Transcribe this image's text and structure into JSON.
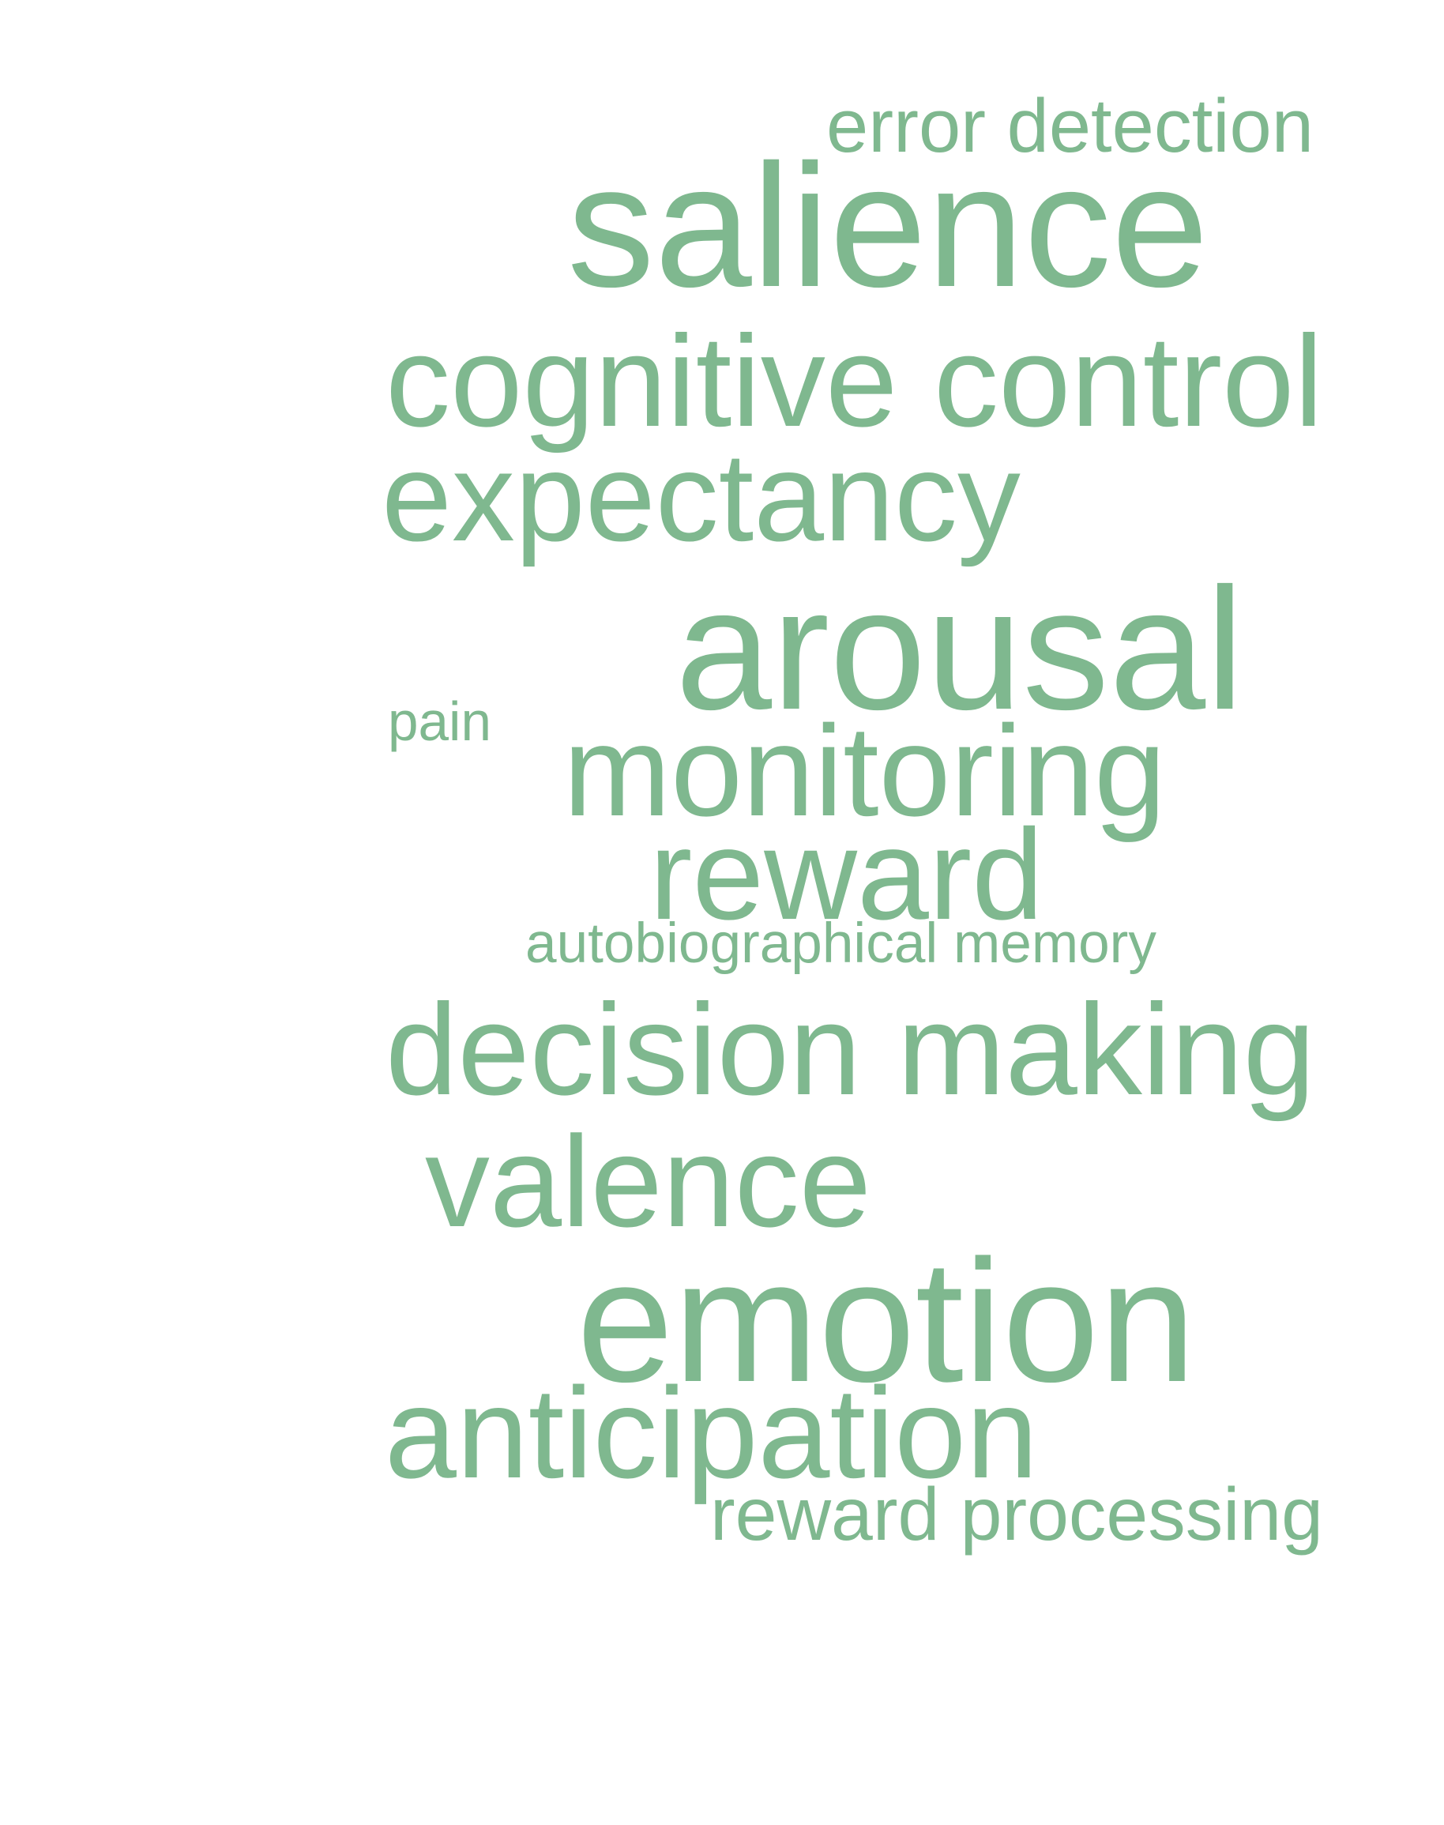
{
  "color": "#7fb88f",
  "words": [
    {
      "id": "error-detection",
      "text": "error detection"
    },
    {
      "id": "salience",
      "text": "salience"
    },
    {
      "id": "cognitive-control",
      "text": "cognitive control"
    },
    {
      "id": "expectancy",
      "text": "expectancy"
    },
    {
      "id": "arousal",
      "text": "arousal"
    },
    {
      "id": "pain",
      "text": "pain"
    },
    {
      "id": "monitoring",
      "text": "monitoring"
    },
    {
      "id": "reward",
      "text": "reward"
    },
    {
      "id": "autobiographical-memory",
      "text": "autobiographical memory"
    },
    {
      "id": "decision-making",
      "text": "decision making"
    },
    {
      "id": "valence",
      "text": "valence"
    },
    {
      "id": "emotion",
      "text": "emotion"
    },
    {
      "id": "anticipation",
      "text": "anticipation"
    },
    {
      "id": "reward-processing",
      "text": "reward processing"
    }
  ]
}
